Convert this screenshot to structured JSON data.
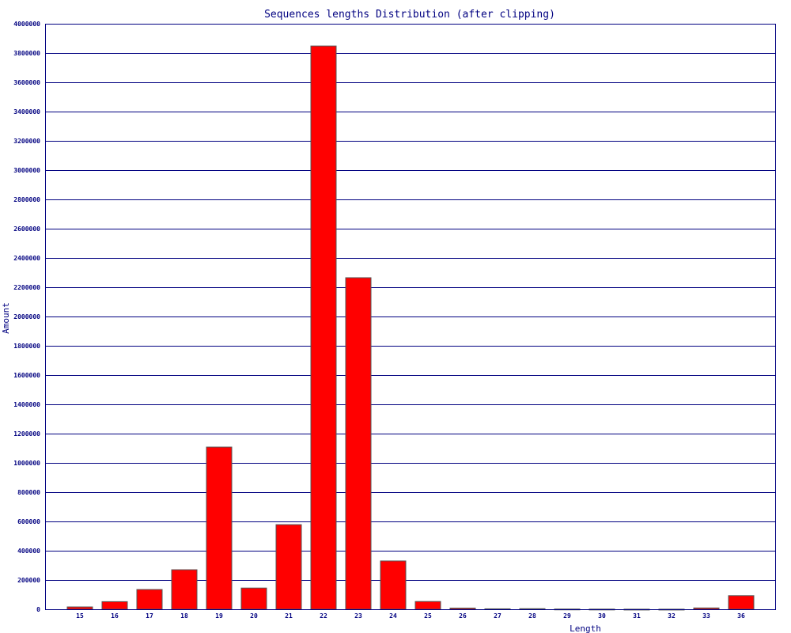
{
  "colors": {
    "bar_fill": "#ff0000",
    "bar_stroke": "#555555",
    "gridline": "#000080",
    "frame": "#000080",
    "text": "#000080",
    "background": "#ffffff"
  },
  "chart_data": {
    "type": "bar",
    "title": "Sequences lengths Distribution (after clipping)",
    "xlabel": "Length",
    "ylabel": "Amount",
    "ylim": [
      0,
      4000000
    ],
    "y_ticks": [
      0,
      200000,
      400000,
      600000,
      800000,
      1000000,
      1200000,
      1400000,
      1600000,
      1800000,
      2000000,
      2200000,
      2400000,
      2600000,
      2800000,
      3000000,
      3200000,
      3400000,
      3600000,
      3800000,
      4000000
    ],
    "y_tick_labels": [
      "0",
      "200000",
      "400000",
      "600000",
      "800000",
      "1000000",
      "1200000",
      "1400000",
      "1600000",
      "1800000",
      "2000000",
      "2200000",
      "2400000",
      "2600000",
      "2800000",
      "3000000",
      "3200000",
      "3400000",
      "3600000",
      "3800000",
      "4000000"
    ],
    "grid": true,
    "categories": [
      "15",
      "16",
      "17",
      "18",
      "19",
      "20",
      "21",
      "22",
      "23",
      "24",
      "25",
      "26",
      "27",
      "28",
      "29",
      "30",
      "31",
      "32",
      "33",
      "36"
    ],
    "values": [
      16000,
      52000,
      135000,
      270000,
      1108000,
      145000,
      578000,
      3848000,
      2265000,
      330000,
      53000,
      8000,
      3000,
      4000,
      1500,
      1000,
      500,
      500,
      9000,
      93000
    ]
  }
}
